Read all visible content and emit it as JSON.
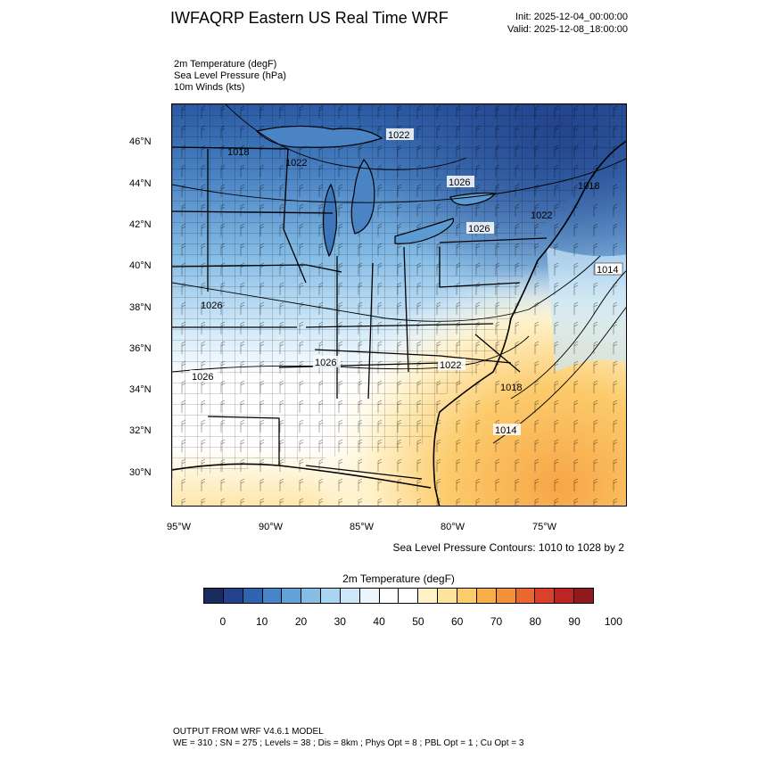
{
  "header": {
    "title": "IWFAQRP Eastern US Real Time WRF",
    "init": "Init: 2025-12-04_00:00:00",
    "valid": "Valid: 2025-12-08_18:00:00"
  },
  "fields": {
    "line1": "2m Temperature   (degF)",
    "line2": "Sea Level Pressure   (hPa)",
    "line3": "10m Winds   (kts)"
  },
  "map": {
    "lat_ticks": [
      "46°N",
      "44°N",
      "42°N",
      "40°N",
      "38°N",
      "36°N",
      "34°N",
      "32°N",
      "30°N"
    ],
    "lon_ticks": [
      "95°W",
      "90°W",
      "85°W",
      "80°W",
      "75°W"
    ],
    "isobar_labels": [
      "1022",
      "1018",
      "1022",
      "1026",
      "1018",
      "1022",
      "1026",
      "1014",
      "1026",
      "1026",
      "1026",
      "1022",
      "1018",
      "1014"
    ],
    "contour_note": "Sea Level Pressure Contours: 1010 to 1028 by 2"
  },
  "colorbar": {
    "title": "2m Temperature  (degF)",
    "labels": [
      "0",
      "10",
      "20",
      "30",
      "40",
      "50",
      "60",
      "70",
      "80",
      "90",
      "100"
    ],
    "colors": [
      "#1a2b5e",
      "#23448c",
      "#2e64b0",
      "#4686c6",
      "#62a2d6",
      "#86bde6",
      "#a9d5f2",
      "#cce7f8",
      "#ebf6fc",
      "#ffffff",
      "#ffffff",
      "#fff1c8",
      "#fde39c",
      "#fccb6c",
      "#faae48",
      "#f4903a",
      "#e9682f",
      "#d8412a",
      "#bc2426",
      "#921a1f"
    ]
  },
  "footer": {
    "line1": "OUTPUT FROM WRF V4.6.1 MODEL",
    "line2": "WE = 310 ; SN = 275 ; Levels = 38 ; Dis = 8km ; Phys Opt = 8 ; PBL Opt = 1 ; Cu Opt = 3"
  }
}
